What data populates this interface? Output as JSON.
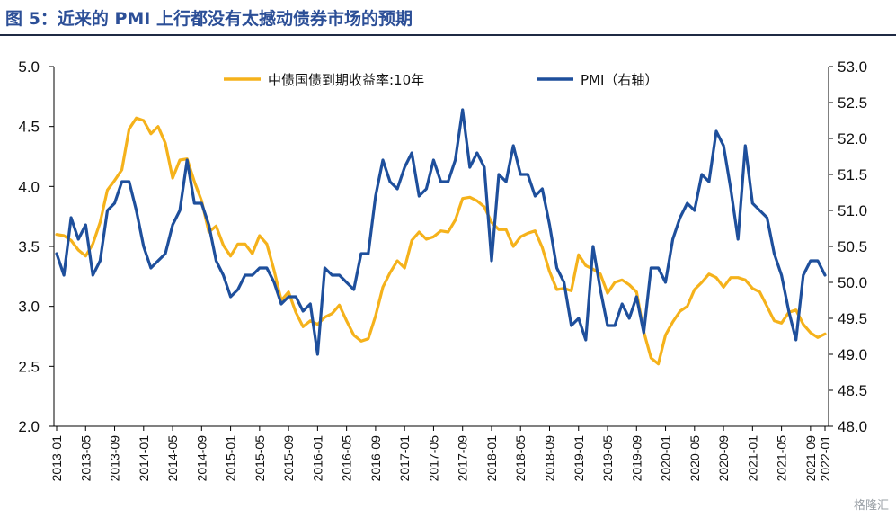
{
  "title": "图 5：近来的 PMI 上行都没有太撼动债券市场的预期",
  "watermark": "格隆汇",
  "chart_data": {
    "type": "line",
    "colors": {
      "bond": "#f5b21b",
      "pmi": "#1e4f9c",
      "axis": "#000000"
    },
    "y_left": {
      "range": [
        2.0,
        5.0
      ],
      "ticks": [
        "2.0",
        "2.5",
        "3.0",
        "3.5",
        "4.0",
        "4.5",
        "5.0"
      ]
    },
    "y_right": {
      "range": [
        48.0,
        53.0
      ],
      "ticks": [
        "48.0",
        "48.5",
        "49.0",
        "49.5",
        "50.0",
        "50.5",
        "51.0",
        "51.5",
        "52.0",
        "52.5",
        "53.0"
      ]
    },
    "x_ticks": [
      "2013-01",
      "2013-05",
      "2013-09",
      "2014-01",
      "2014-05",
      "2014-09",
      "2015-01",
      "2015-05",
      "2015-09",
      "2016-01",
      "2016-05",
      "2016-09",
      "2017-01",
      "2017-05",
      "2017-09",
      "2018-01",
      "2018-05",
      "2018-09",
      "2019-01",
      "2019-05",
      "2019-09",
      "2020-01",
      "2020-05",
      "2020-09",
      "2021-01",
      "2021-05",
      "2021-09",
      "2022-01"
    ],
    "grid": false,
    "legend_position": "top-center",
    "series": [
      {
        "name": "中债国债到期收益率:10年",
        "axis": "left",
        "values": [
          3.6,
          3.59,
          3.55,
          3.47,
          3.42,
          3.52,
          3.7,
          3.97,
          4.05,
          4.14,
          4.48,
          4.57,
          4.55,
          4.44,
          4.5,
          4.36,
          4.07,
          4.22,
          4.23,
          4.04,
          3.88,
          3.62,
          3.67,
          3.51,
          3.42,
          3.52,
          3.52,
          3.44,
          3.59,
          3.52,
          3.3,
          3.05,
          3.12,
          2.95,
          2.83,
          2.88,
          2.85,
          2.91,
          2.94,
          3.01,
          2.88,
          2.76,
          2.71,
          2.73,
          2.92,
          3.16,
          3.28,
          3.38,
          3.32,
          3.55,
          3.62,
          3.56,
          3.58,
          3.63,
          3.62,
          3.72,
          3.9,
          3.91,
          3.88,
          3.83,
          3.7,
          3.64,
          3.64,
          3.5,
          3.58,
          3.61,
          3.63,
          3.49,
          3.29,
          3.14,
          3.15,
          3.13,
          3.43,
          3.34,
          3.31,
          3.27,
          3.11,
          3.2,
          3.22,
          3.18,
          3.12,
          2.79,
          2.57,
          2.52,
          2.76,
          2.87,
          2.96,
          3.0,
          3.14,
          3.2,
          3.27,
          3.24,
          3.16,
          3.24,
          3.24,
          3.22,
          3.15,
          3.12,
          3.0,
          2.88,
          2.86,
          2.95,
          2.97,
          2.85,
          2.78,
          2.74,
          2.77
        ]
      },
      {
        "name": "PMI（右轴）",
        "axis": "right",
        "values": [
          50.4,
          50.1,
          50.9,
          50.6,
          50.8,
          50.1,
          50.3,
          51.0,
          51.1,
          51.4,
          51.4,
          51.0,
          50.5,
          50.2,
          50.3,
          50.4,
          50.8,
          51.0,
          51.7,
          51.1,
          51.1,
          50.8,
          50.3,
          50.1,
          49.8,
          49.9,
          50.1,
          50.1,
          50.2,
          50.2,
          50.0,
          49.7,
          49.8,
          49.8,
          49.6,
          49.7,
          49.0,
          50.2,
          50.1,
          50.1,
          50.0,
          49.9,
          50.4,
          50.4,
          51.2,
          51.7,
          51.4,
          51.3,
          51.6,
          51.8,
          51.2,
          51.3,
          51.7,
          51.4,
          51.4,
          51.7,
          52.4,
          51.6,
          51.8,
          51.6,
          50.3,
          51.5,
          51.4,
          51.9,
          51.5,
          51.5,
          51.2,
          51.3,
          50.8,
          50.2,
          50.0,
          49.4,
          49.5,
          49.2,
          50.5,
          49.9,
          49.4,
          49.4,
          49.7,
          49.5,
          49.8,
          49.3,
          50.2,
          50.2,
          50.0,
          50.6,
          50.9,
          51.1,
          51.0,
          51.5,
          51.4,
          52.1,
          51.9,
          51.3,
          50.6,
          51.9,
          51.1,
          51.0,
          50.9,
          50.4,
          50.1,
          49.6,
          49.2,
          50.1,
          50.3,
          50.3,
          50.1
        ]
      }
    ]
  }
}
